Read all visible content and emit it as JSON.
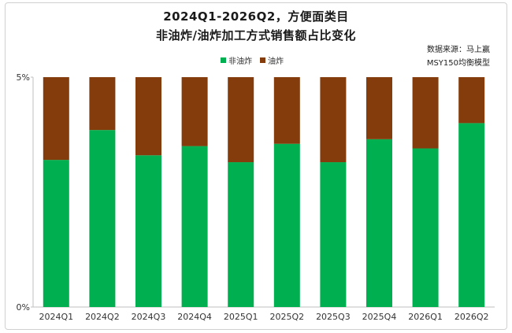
{
  "chart_data": {
    "type": "bar",
    "stacked": true,
    "title": "2024Q1-2026Q2，方便面类目",
    "subtitle": "非油炸/油炸加工方式销售额占比变化",
    "source_line1": "数据来源：马上赢",
    "source_line2": "MSY150均衡模型",
    "categories": [
      "2024Q1",
      "2024Q2",
      "2024Q3",
      "2024Q4",
      "2025Q1",
      "2025Q2",
      "2025Q3",
      "2025Q4",
      "2026Q1",
      "2026Q2"
    ],
    "series": [
      {
        "name": "非油炸",
        "color": "#00b050",
        "values": [
          3.2,
          3.85,
          3.3,
          3.5,
          3.15,
          3.55,
          3.15,
          3.65,
          3.45,
          4.0
        ]
      },
      {
        "name": "油炸",
        "color": "#843c0c",
        "values": [
          1.8,
          1.15,
          1.7,
          1.5,
          1.85,
          1.45,
          1.85,
          1.35,
          1.55,
          1.0
        ]
      }
    ],
    "ylim": [
      0,
      5
    ],
    "yticks": [
      "0%",
      "5%"
    ],
    "legend_position": "top",
    "grid": false
  }
}
